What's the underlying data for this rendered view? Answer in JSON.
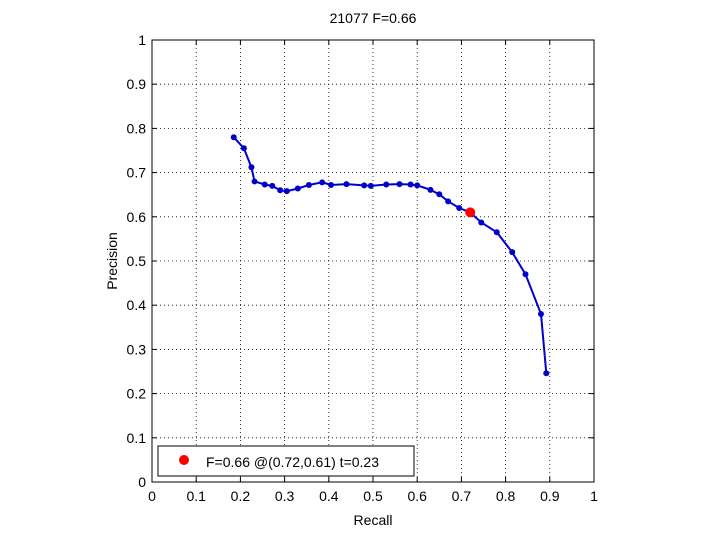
{
  "chart_data": {
    "type": "line",
    "title": "21077 F=0.66",
    "xlabel": "Recall",
    "ylabel": "Precision",
    "xlim": [
      0,
      1
    ],
    "ylim": [
      0,
      1
    ],
    "x_ticks": [
      0,
      0.1,
      0.2,
      0.3,
      0.4,
      0.5,
      0.6,
      0.7,
      0.8,
      0.9,
      1
    ],
    "x_tick_labels": [
      "0",
      "0.1",
      "0.2",
      "0.3",
      "0.4",
      "0.5",
      "0.6",
      "0.7",
      "0.8",
      "0.9",
      "1"
    ],
    "y_ticks": [
      0,
      0.1,
      0.2,
      0.3,
      0.4,
      0.5,
      0.6,
      0.7,
      0.8,
      0.9,
      1
    ],
    "y_tick_labels": [
      "0",
      "0.1",
      "0.2",
      "0.3",
      "0.4",
      "0.5",
      "0.6",
      "0.7",
      "0.8",
      "0.9",
      "1"
    ],
    "grid": true,
    "grid_style": "dotted",
    "series": [
      {
        "color": "#0000cc",
        "x": [
          0.185,
          0.208,
          0.225,
          0.232,
          0.255,
          0.272,
          0.29,
          0.305,
          0.33,
          0.355,
          0.385,
          0.405,
          0.44,
          0.48,
          0.495,
          0.53,
          0.56,
          0.585,
          0.6,
          0.63,
          0.65,
          0.67,
          0.695,
          0.72,
          0.745,
          0.78,
          0.815,
          0.845,
          0.88,
          0.892
        ],
        "y": [
          0.78,
          0.755,
          0.712,
          0.68,
          0.673,
          0.67,
          0.66,
          0.658,
          0.664,
          0.672,
          0.678,
          0.672,
          0.674,
          0.671,
          0.67,
          0.673,
          0.674,
          0.673,
          0.671,
          0.661,
          0.651,
          0.635,
          0.62,
          0.61,
          0.587,
          0.565,
          0.52,
          0.47,
          0.38,
          0.246
        ]
      }
    ],
    "best_point": {
      "x": 0.72,
      "y": 0.61,
      "color": "#ff0000"
    },
    "legend": {
      "label": "F=0.66 @(0.72,0.61) t=0.23",
      "placement": "bottom-left"
    }
  }
}
